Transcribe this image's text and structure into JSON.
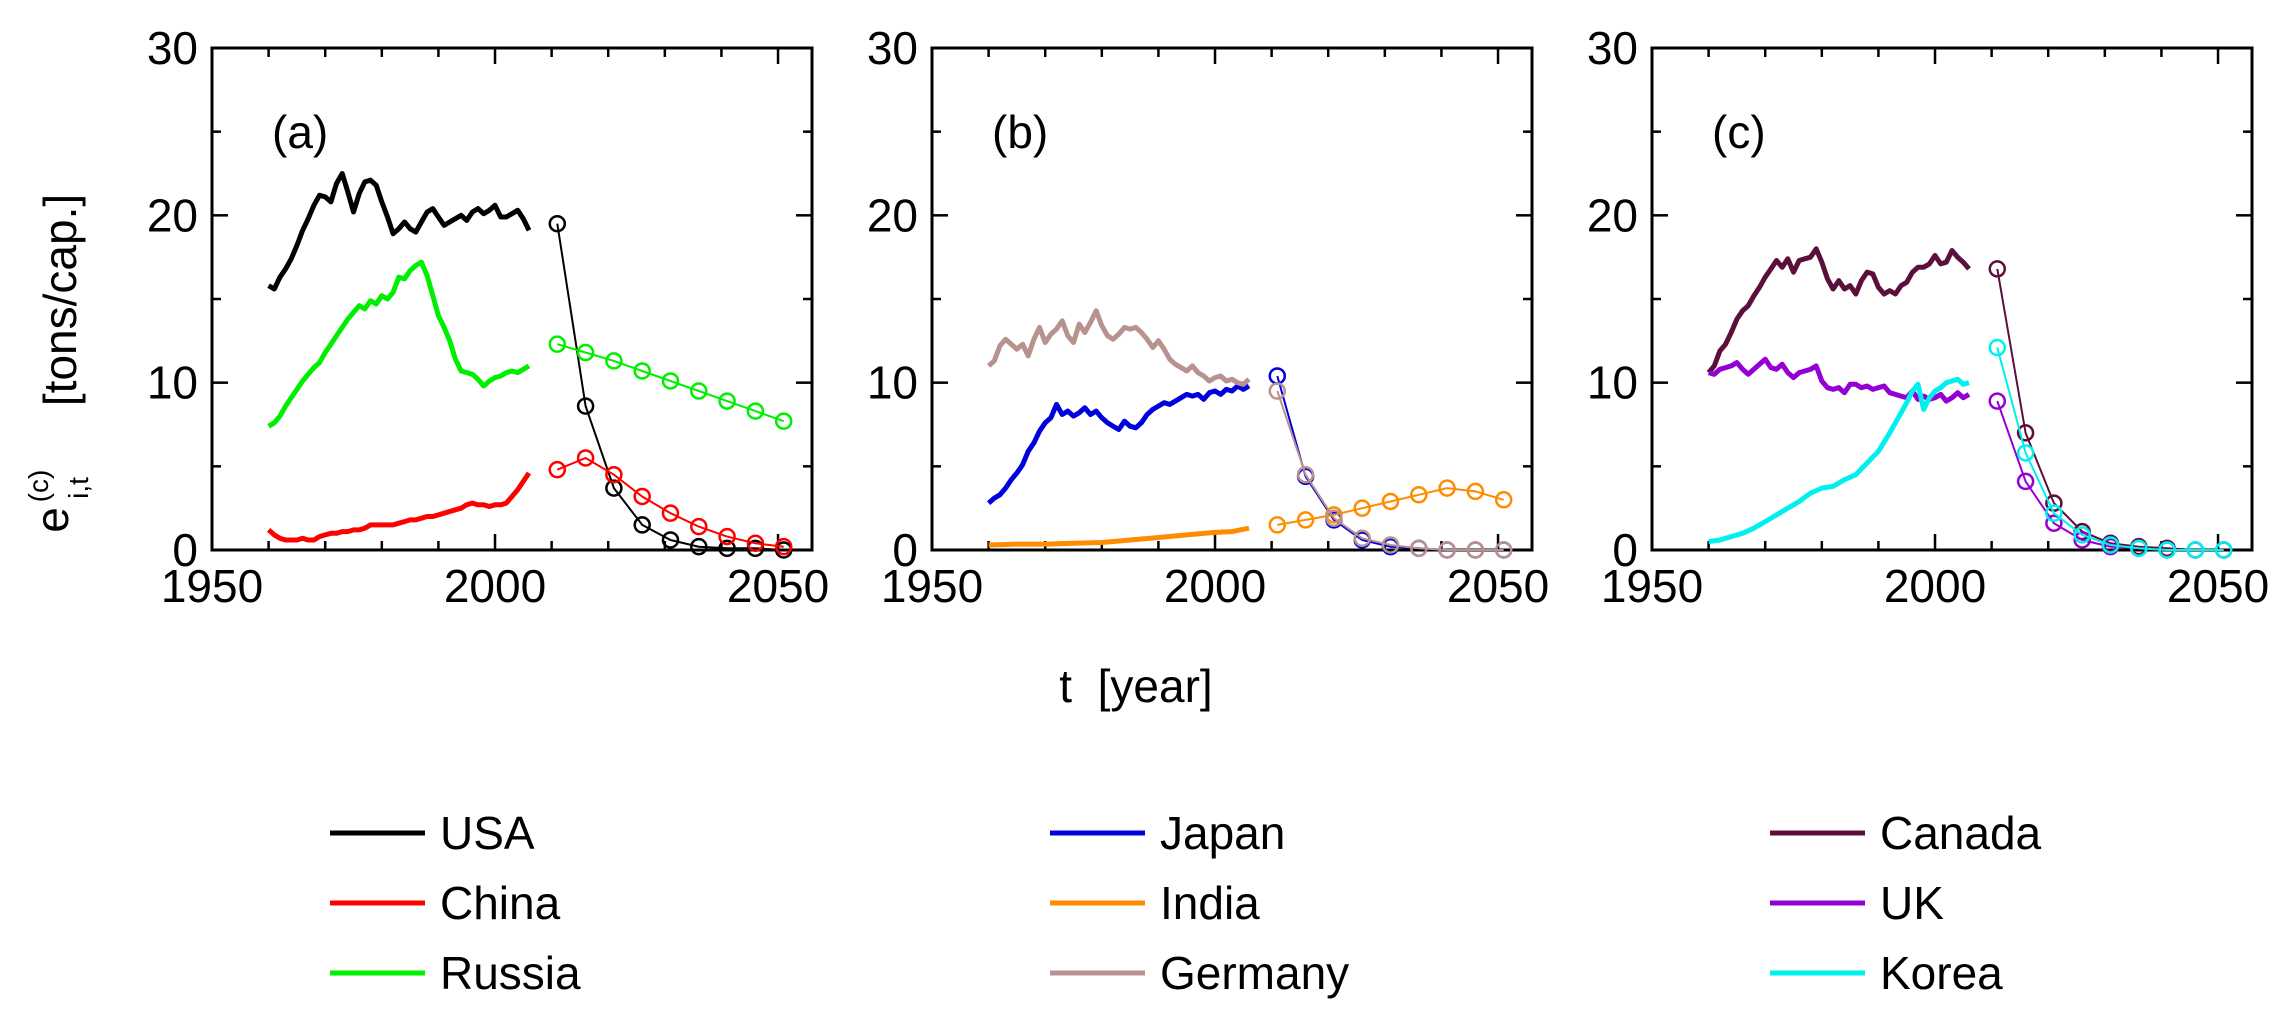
{
  "chart_data": {
    "type": "line",
    "ylabel_main": "e",
    "ylabel_sub": "i,t",
    "ylabel_sup": "(c)",
    "ylabel_units": "[tons/cap.]",
    "xlabel": "t  [year]",
    "xlim": [
      1950,
      2056
    ],
    "ylim": [
      0,
      30
    ],
    "xticks": [
      "1950",
      "2000",
      "2050"
    ],
    "yticks": [
      "0",
      "10",
      "20",
      "30"
    ],
    "forecast_years": [
      2011,
      2016,
      2021,
      2026,
      2031,
      2036,
      2041,
      2046,
      2051
    ],
    "colors": {
      "USA": "#000000",
      "China": "#ff0000",
      "Russia": "#00ee00",
      "Japan": "#0000dd",
      "India": "#ff8c00",
      "Germany": "#b8928e",
      "Canada": "#5c0f3a",
      "UK": "#9400d3",
      "Korea": "#00f0f0"
    },
    "panels": [
      {
        "label": "(a)",
        "series": [
          {
            "name": "USA",
            "hist_x": [
              1960,
              1961,
              1962,
              1963,
              1964,
              1965,
              1966,
              1967,
              1968,
              1969,
              1970,
              1971,
              1972,
              1973,
              1974,
              1975,
              1976,
              1977,
              1978,
              1979,
              1980,
              1981,
              1982,
              1983,
              1984,
              1985,
              1986,
              1987,
              1988,
              1989,
              1990,
              1991,
              1992,
              1993,
              1994,
              1995,
              1996,
              1997,
              1998,
              1999,
              2000,
              2001,
              2002,
              2003,
              2004,
              2005,
              2006
            ],
            "hist_y": [
              15.8,
              15.6,
              16.3,
              16.8,
              17.4,
              18.2,
              19.1,
              19.8,
              20.6,
              21.2,
              21.1,
              20.8,
              21.9,
              22.5,
              21.4,
              20.2,
              21.3,
              22.0,
              22.1,
              21.8,
              20.8,
              19.9,
              18.9,
              19.2,
              19.6,
              19.2,
              19.0,
              19.6,
              20.2,
              20.4,
              19.9,
              19.4,
              19.6,
              19.8,
              20.0,
              19.7,
              20.2,
              20.4,
              20.1,
              20.3,
              20.6,
              19.9,
              19.9,
              20.1,
              20.3,
              19.8,
              19.1
            ],
            "fore_y": [
              19.5,
              8.6,
              3.7,
              1.5,
              0.6,
              0.2,
              0.1,
              0.1,
              0.0
            ]
          },
          {
            "name": "China",
            "hist_x": [
              1960,
              1961,
              1962,
              1963,
              1964,
              1965,
              1966,
              1967,
              1968,
              1969,
              1970,
              1971,
              1972,
              1973,
              1974,
              1975,
              1976,
              1977,
              1978,
              1979,
              1980,
              1981,
              1982,
              1983,
              1984,
              1985,
              1986,
              1987,
              1988,
              1989,
              1990,
              1991,
              1992,
              1993,
              1994,
              1995,
              1996,
              1997,
              1998,
              1999,
              2000,
              2001,
              2002,
              2003,
              2004,
              2005,
              2006
            ],
            "hist_y": [
              1.2,
              0.9,
              0.7,
              0.6,
              0.6,
              0.6,
              0.7,
              0.6,
              0.6,
              0.8,
              0.9,
              1.0,
              1.0,
              1.1,
              1.1,
              1.2,
              1.2,
              1.3,
              1.5,
              1.5,
              1.5,
              1.5,
              1.5,
              1.6,
              1.7,
              1.8,
              1.8,
              1.9,
              2.0,
              2.0,
              2.1,
              2.2,
              2.3,
              2.4,
              2.5,
              2.7,
              2.8,
              2.7,
              2.7,
              2.6,
              2.7,
              2.7,
              2.8,
              3.2,
              3.6,
              4.1,
              4.6
            ],
            "fore_y": [
              4.8,
              5.5,
              4.5,
              3.2,
              2.2,
              1.4,
              0.8,
              0.4,
              0.2
            ]
          },
          {
            "name": "Russia",
            "hist_x": [
              1960,
              1961,
              1962,
              1963,
              1964,
              1965,
              1966,
              1967,
              1968,
              1969,
              1970,
              1971,
              1972,
              1973,
              1974,
              1975,
              1976,
              1977,
              1978,
              1979,
              1980,
              1981,
              1982,
              1983,
              1984,
              1985,
              1986,
              1987,
              1988,
              1989,
              1990,
              1991,
              1992,
              1993,
              1994,
              1995,
              1996,
              1997,
              1998,
              1999,
              2000,
              2001,
              2002,
              2003,
              2004,
              2005,
              2006
            ],
            "hist_y": [
              7.4,
              7.6,
              8.0,
              8.6,
              9.1,
              9.6,
              10.1,
              10.5,
              10.9,
              11.2,
              11.8,
              12.3,
              12.8,
              13.3,
              13.8,
              14.2,
              14.6,
              14.4,
              14.9,
              14.7,
              15.2,
              15.0,
              15.4,
              16.3,
              16.2,
              16.7,
              17.0,
              17.2,
              16.4,
              15.2,
              14.0,
              13.3,
              12.5,
              11.4,
              10.7,
              10.6,
              10.5,
              10.2,
              9.8,
              10.1,
              10.3,
              10.4,
              10.6,
              10.7,
              10.6,
              10.8,
              11.0
            ],
            "fore_y": [
              12.3,
              11.8,
              11.3,
              10.7,
              10.1,
              9.5,
              8.9,
              8.3,
              7.7
            ]
          }
        ]
      },
      {
        "label": "(b)",
        "series": [
          {
            "name": "Japan",
            "hist_x": [
              1960,
              1961,
              1962,
              1963,
              1964,
              1965,
              1966,
              1967,
              1968,
              1969,
              1970,
              1971,
              1972,
              1973,
              1974,
              1975,
              1976,
              1977,
              1978,
              1979,
              1980,
              1981,
              1982,
              1983,
              1984,
              1985,
              1986,
              1987,
              1988,
              1989,
              1990,
              1991,
              1992,
              1993,
              1994,
              1995,
              1996,
              1997,
              1998,
              1999,
              2000,
              2001,
              2002,
              2003,
              2004,
              2005,
              2006
            ],
            "hist_y": [
              2.8,
              3.1,
              3.3,
              3.7,
              4.2,
              4.6,
              5.1,
              5.9,
              6.4,
              7.1,
              7.6,
              7.9,
              8.7,
              8.1,
              8.3,
              8.0,
              8.2,
              8.5,
              8.1,
              8.3,
              7.9,
              7.6,
              7.4,
              7.2,
              7.7,
              7.4,
              7.3,
              7.6,
              8.1,
              8.4,
              8.6,
              8.8,
              8.7,
              8.9,
              9.1,
              9.3,
              9.2,
              9.3,
              9.0,
              9.4,
              9.5,
              9.3,
              9.6,
              9.5,
              9.8,
              9.6,
              9.8
            ],
            "fore_y": [
              10.4,
              4.4,
              1.8,
              0.6,
              0.2,
              0.1,
              0.0,
              0.0,
              0.0
            ]
          },
          {
            "name": "India",
            "hist_x": [
              1960,
              1965,
              1970,
              1975,
              1980,
              1985,
              1990,
              1995,
              2000,
              2003,
              2006
            ],
            "hist_y": [
              0.3,
              0.35,
              0.35,
              0.4,
              0.45,
              0.6,
              0.75,
              0.9,
              1.05,
              1.1,
              1.3
            ],
            "fore_y": [
              1.5,
              1.8,
              2.1,
              2.5,
              2.9,
              3.3,
              3.7,
              3.5,
              3.0
            ]
          },
          {
            "name": "Germany",
            "hist_x": [
              1960,
              1961,
              1962,
              1963,
              1964,
              1965,
              1966,
              1967,
              1968,
              1969,
              1970,
              1971,
              1972,
              1973,
              1974,
              1975,
              1976,
              1977,
              1978,
              1979,
              1980,
              1981,
              1982,
              1983,
              1984,
              1985,
              1986,
              1987,
              1988,
              1989,
              1990,
              1991,
              1992,
              1993,
              1994,
              1995,
              1996,
              1997,
              1998,
              1999,
              2000,
              2001,
              2002,
              2003,
              2004,
              2005,
              2006
            ],
            "hist_y": [
              11.0,
              11.3,
              12.2,
              12.6,
              12.3,
              12.0,
              12.3,
              11.6,
              12.6,
              13.3,
              12.4,
              12.9,
              13.2,
              13.7,
              12.8,
              12.4,
              13.5,
              13.0,
              13.6,
              14.3,
              13.4,
              12.8,
              12.6,
              12.9,
              13.3,
              13.2,
              13.3,
              13.0,
              12.6,
              12.1,
              12.5,
              12.0,
              11.4,
              11.1,
              10.9,
              10.7,
              11.0,
              10.6,
              10.4,
              10.1,
              10.3,
              10.4,
              10.1,
              10.2,
              10.0,
              9.9,
              10.2
            ],
            "fore_y": [
              9.5,
              4.5,
              1.9,
              0.7,
              0.3,
              0.1,
              0.0,
              0.0,
              0.0
            ]
          }
        ]
      },
      {
        "label": "(c)",
        "series": [
          {
            "name": "Canada",
            "hist_x": [
              1960,
              1961,
              1962,
              1963,
              1964,
              1965,
              1966,
              1967,
              1968,
              1969,
              1970,
              1971,
              1972,
              1973,
              1974,
              1975,
              1976,
              1977,
              1978,
              1979,
              1980,
              1981,
              1982,
              1983,
              1984,
              1985,
              1986,
              1987,
              1988,
              1989,
              1990,
              1991,
              1992,
              1993,
              1994,
              1995,
              1996,
              1997,
              1998,
              1999,
              2000,
              2001,
              2002,
              2003,
              2004,
              2005,
              2006
            ],
            "hist_y": [
              10.6,
              11.0,
              11.9,
              12.3,
              13.0,
              13.8,
              14.3,
              14.6,
              15.2,
              15.7,
              16.3,
              16.8,
              17.3,
              16.9,
              17.4,
              16.6,
              17.3,
              17.4,
              17.5,
              18.0,
              17.2,
              16.2,
              15.6,
              16.1,
              15.6,
              15.8,
              15.3,
              16.1,
              16.6,
              16.5,
              15.7,
              15.3,
              15.5,
              15.3,
              15.8,
              16.0,
              16.6,
              16.9,
              16.9,
              17.1,
              17.6,
              17.1,
              17.2,
              17.9,
              17.5,
              17.2,
              16.8
            ],
            "fore_y": [
              16.8,
              7.0,
              2.8,
              1.1,
              0.4,
              0.2,
              0.1,
              0.0,
              0.0
            ]
          },
          {
            "name": "UK",
            "hist_x": [
              1960,
              1961,
              1962,
              1963,
              1964,
              1965,
              1966,
              1967,
              1968,
              1969,
              1970,
              1971,
              1972,
              1973,
              1974,
              1975,
              1976,
              1977,
              1978,
              1979,
              1980,
              1981,
              1982,
              1983,
              1984,
              1985,
              1986,
              1987,
              1988,
              1989,
              1990,
              1991,
              1992,
              1993,
              1994,
              1995,
              1996,
              1997,
              1998,
              1999,
              2000,
              2001,
              2002,
              2003,
              2004,
              2005,
              2006
            ],
            "hist_y": [
              10.6,
              10.5,
              10.8,
              10.9,
              11.0,
              11.2,
              10.8,
              10.5,
              10.8,
              11.1,
              11.4,
              10.9,
              10.8,
              11.1,
              10.6,
              10.3,
              10.6,
              10.7,
              10.8,
              11.0,
              10.1,
              9.7,
              9.6,
              9.7,
              9.4,
              9.9,
              9.9,
              9.7,
              9.8,
              9.6,
              9.7,
              9.8,
              9.4,
              9.3,
              9.2,
              9.1,
              9.5,
              9.0,
              9.2,
              9.0,
              9.1,
              9.3,
              8.9,
              9.1,
              9.4,
              9.1,
              9.3
            ],
            "fore_y": [
              8.9,
              4.1,
              1.6,
              0.6,
              0.2,
              0.1,
              0.0,
              0.0,
              0.0
            ]
          },
          {
            "name": "Korea",
            "hist_x": [
              1960,
              1962,
              1964,
              1966,
              1968,
              1970,
              1972,
              1974,
              1976,
              1978,
              1980,
              1982,
              1984,
              1986,
              1988,
              1990,
              1992,
              1993,
              1994,
              1995,
              1996,
              1997,
              1998,
              1999,
              2000,
              2001,
              2002,
              2003,
              2004,
              2005,
              2006
            ],
            "hist_y": [
              0.5,
              0.6,
              0.8,
              1.0,
              1.3,
              1.7,
              2.1,
              2.5,
              2.9,
              3.4,
              3.7,
              3.8,
              4.2,
              4.5,
              5.2,
              5.9,
              7.0,
              7.6,
              8.2,
              8.8,
              9.5,
              9.9,
              8.4,
              9.1,
              9.5,
              9.7,
              10.0,
              10.1,
              10.2,
              9.9,
              10.0
            ],
            "fore_y": [
              12.1,
              5.8,
              2.2,
              0.9,
              0.3,
              0.1,
              0.0,
              0.0,
              0.0
            ]
          }
        ]
      }
    ],
    "legend": [
      [
        "USA",
        "China",
        "Russia"
      ],
      [
        "Japan",
        "India",
        "Germany"
      ],
      [
        "Canada",
        "UK",
        "Korea"
      ]
    ]
  }
}
